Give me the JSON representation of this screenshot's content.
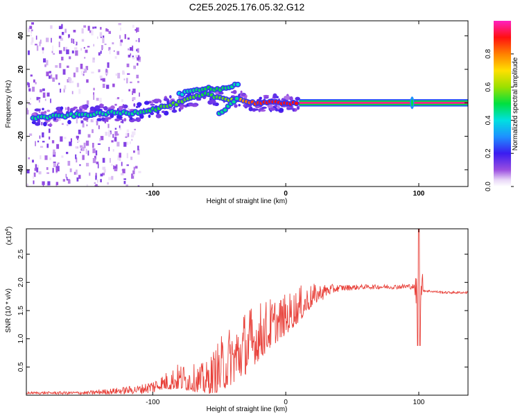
{
  "title": "C2E5.2025.176.05.32.G12",
  "chart_data": [
    {
      "type": "heatmap",
      "xlabel": "Height of straight line (km)",
      "ylabel": "Frequency (Hz)",
      "xlim": [
        -195,
        137
      ],
      "ylim": [
        -50,
        49
      ],
      "x_ticks": [
        {
          "value": -100,
          "label": "-100"
        },
        {
          "value": 0,
          "label": "0"
        },
        {
          "value": 100,
          "label": "100"
        }
      ],
      "y_ticks": [
        {
          "value": -40,
          "label": "-40"
        },
        {
          "value": -20,
          "label": "-20"
        },
        {
          "value": 0,
          "label": "0"
        },
        {
          "value": 20,
          "label": "20"
        },
        {
          "value": 40,
          "label": "40"
        }
      ],
      "colorbar": {
        "label": "Normalized spectral amplitude",
        "range": [
          0,
          1
        ],
        "ticks": [
          "0.0",
          "0.2",
          "0.4",
          "0.6",
          "0.8"
        ],
        "tick_values": [
          0,
          0.2,
          0.4,
          0.6,
          0.8
        ]
      },
      "ridge_main": {
        "x": [
          -190,
          -170,
          -150,
          -130,
          -115,
          -100,
          -90,
          -80,
          -70,
          -60,
          -50,
          -40,
          -35,
          -25,
          -15,
          0,
          10
        ],
        "freq": [
          -9,
          -8,
          -7,
          -6,
          -6,
          -4,
          -2,
          0,
          3,
          5,
          3,
          2,
          2,
          0,
          0,
          0,
          0
        ],
        "amplitude": [
          0.45,
          0.45,
          0.45,
          0.45,
          0.45,
          0.5,
          0.55,
          0.55,
          0.55,
          0.5,
          0.55,
          0.6,
          0.75,
          0.85,
          0.9,
          0.9,
          0.9
        ]
      },
      "ridge_upper": {
        "x": [
          -80,
          -70,
          -60,
          -50,
          -40,
          -35
        ],
        "freq": [
          5,
          7,
          9,
          8,
          10,
          11
        ],
        "amplitude": [
          0.4,
          0.45,
          0.5,
          0.5,
          0.45,
          0.4
        ]
      },
      "ridge_branch": {
        "x": [
          -50,
          -45,
          -40,
          -35
        ],
        "freq": [
          -7,
          -4,
          0,
          4
        ],
        "amplitude": [
          0.45,
          0.45,
          0.45,
          0.45
        ]
      },
      "line_constant": {
        "x": [
          10,
          137
        ],
        "freq": 0,
        "amplitude": 0.97
      },
      "blip": {
        "x": 95,
        "freq": 0
      }
    },
    {
      "type": "line",
      "xlabel": "Height of straight line (km)",
      "ylabel": "SNR (10 * v/v)",
      "scale_label": "(x10",
      "scale_exponent": "4",
      "xlim": [
        -195,
        137
      ],
      "ylim": [
        0,
        2.95
      ],
      "color": "#e8413a",
      "x_ticks": [
        {
          "value": -100,
          "label": "-100"
        },
        {
          "value": 0,
          "label": "0"
        },
        {
          "value": 100,
          "label": "100"
        }
      ],
      "y_ticks": [
        {
          "value": 0.5,
          "label": "0.5"
        },
        {
          "value": 1.0,
          "label": "1.0"
        },
        {
          "value": 1.5,
          "label": "1.5"
        },
        {
          "value": 2.0,
          "label": "2.0"
        },
        {
          "value": 2.5,
          "label": "2.5"
        }
      ],
      "envelope": {
        "x": [
          -195,
          -150,
          -110,
          -100,
          -90,
          -80,
          -70,
          -60,
          -50,
          -40,
          -30,
          -20,
          -10,
          0,
          10,
          20,
          30,
          40,
          60,
          80,
          95,
          105,
          120,
          137
        ],
        "mean": [
          0.04,
          0.04,
          0.1,
          0.15,
          0.2,
          0.25,
          0.22,
          0.2,
          0.35,
          0.55,
          0.75,
          0.95,
          1.15,
          1.3,
          1.5,
          1.7,
          1.85,
          1.9,
          1.92,
          1.92,
          1.93,
          1.85,
          1.82,
          1.82
        ],
        "amplitude": [
          0.02,
          0.03,
          0.08,
          0.12,
          0.2,
          0.3,
          0.3,
          0.35,
          0.6,
          0.7,
          0.75,
          0.65,
          0.55,
          0.45,
          0.4,
          0.25,
          0.12,
          0.06,
          0.04,
          0.04,
          0.05,
          0.02,
          0.02,
          0.02
        ]
      },
      "spike": {
        "x": 100,
        "peak": 2.95,
        "trough": 0.88
      }
    }
  ]
}
